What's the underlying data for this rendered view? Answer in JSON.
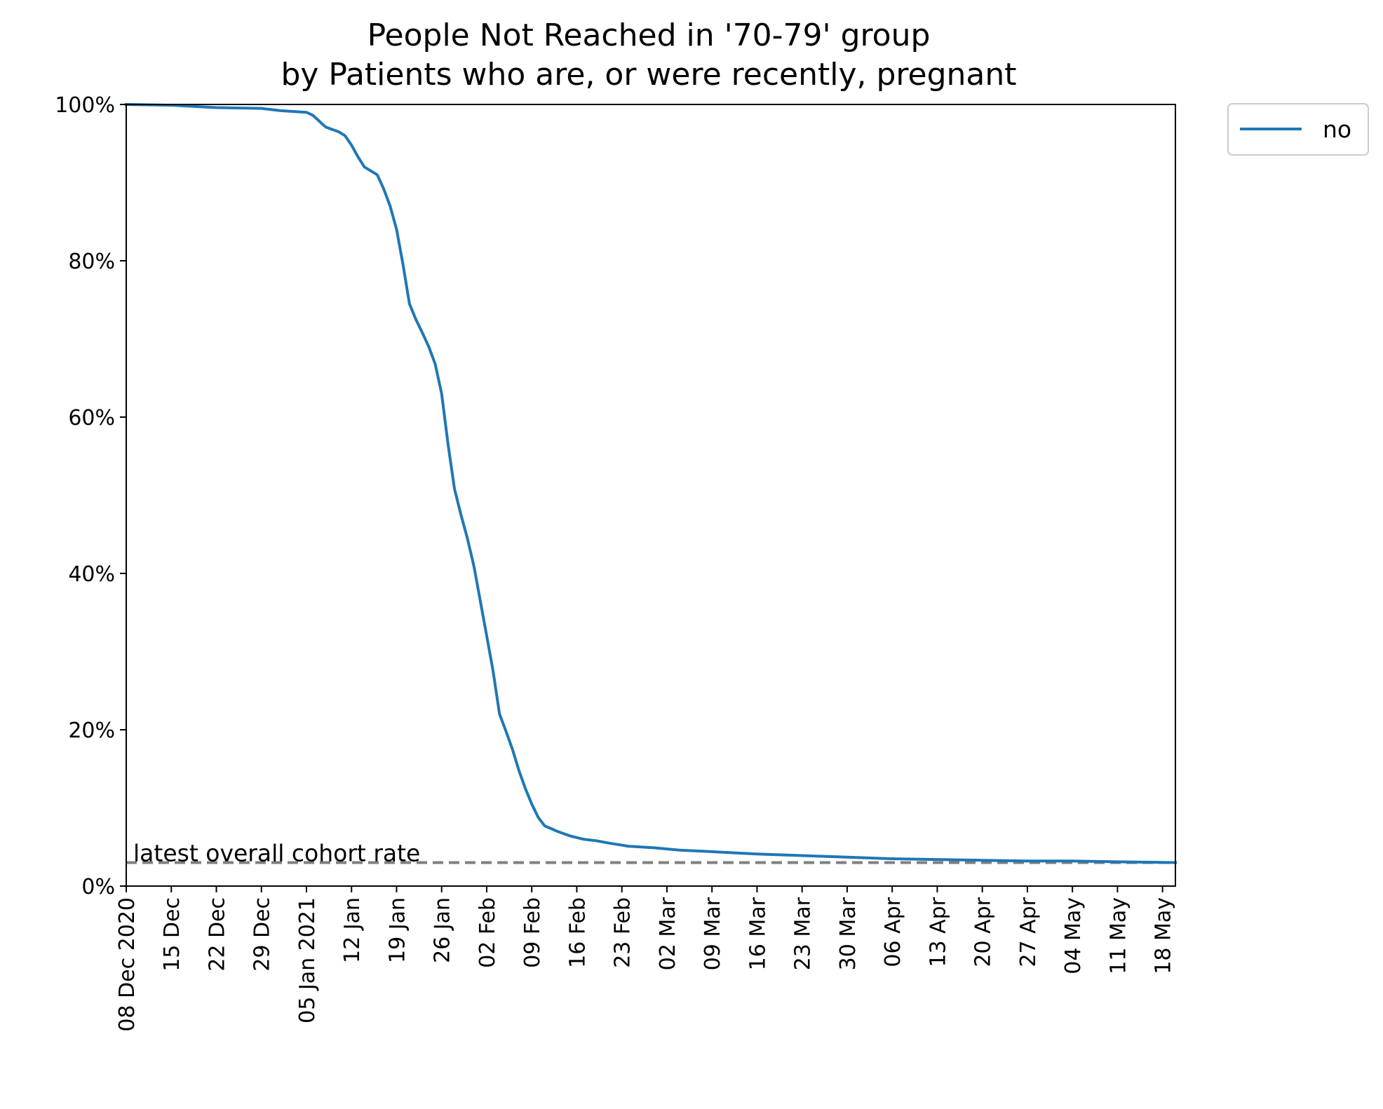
{
  "chart_data": {
    "type": "line",
    "title": "People Not Reached in '70-79' group",
    "subtitle": "by Patients who are, or were recently, pregnant",
    "xlabel": "",
    "ylabel": "",
    "x_tick_labels": [
      "08 Dec 2020",
      "15 Dec",
      "22 Dec",
      "29 Dec",
      "05 Jan 2021",
      "12 Jan",
      "19 Jan",
      "26 Jan",
      "02 Feb",
      "09 Feb",
      "16 Feb",
      "23 Feb",
      "02 Mar",
      "09 Mar",
      "16 Mar",
      "23 Mar",
      "30 Mar",
      "06 Apr",
      "13 Apr",
      "20 Apr",
      "27 Apr",
      "04 May",
      "11 May",
      "18 May"
    ],
    "y_tick_labels": [
      "0%",
      "20%",
      "40%",
      "60%",
      "80%",
      "100%"
    ],
    "xlim": [
      "2020-12-08",
      "2021-05-20"
    ],
    "ylim": [
      0,
      100
    ],
    "grid": false,
    "legend_position": "outside-top-right",
    "series": [
      {
        "name": "no",
        "color": "#1f77b4",
        "points": [
          {
            "x": "2020-12-08",
            "y": 100.0
          },
          {
            "x": "2020-12-15",
            "y": 99.9
          },
          {
            "x": "2020-12-22",
            "y": 99.6
          },
          {
            "x": "2020-12-29",
            "y": 99.5
          },
          {
            "x": "2021-01-01",
            "y": 99.2
          },
          {
            "x": "2021-01-05",
            "y": 99.0
          },
          {
            "x": "2021-01-06",
            "y": 98.6
          },
          {
            "x": "2021-01-08",
            "y": 97.1
          },
          {
            "x": "2021-01-10",
            "y": 96.5
          },
          {
            "x": "2021-01-11",
            "y": 96.0
          },
          {
            "x": "2021-01-12",
            "y": 94.8
          },
          {
            "x": "2021-01-13",
            "y": 93.3
          },
          {
            "x": "2021-01-14",
            "y": 92.0
          },
          {
            "x": "2021-01-15",
            "y": 91.5
          },
          {
            "x": "2021-01-16",
            "y": 91.0
          },
          {
            "x": "2021-01-17",
            "y": 89.2
          },
          {
            "x": "2021-01-18",
            "y": 87.0
          },
          {
            "x": "2021-01-19",
            "y": 84.0
          },
          {
            "x": "2021-01-20",
            "y": 79.5
          },
          {
            "x": "2021-01-21",
            "y": 74.5
          },
          {
            "x": "2021-01-22",
            "y": 72.5
          },
          {
            "x": "2021-01-23",
            "y": 70.8
          },
          {
            "x": "2021-01-24",
            "y": 69.0
          },
          {
            "x": "2021-01-25",
            "y": 66.8
          },
          {
            "x": "2021-01-26",
            "y": 63.0
          },
          {
            "x": "2021-01-27",
            "y": 56.5
          },
          {
            "x": "2021-01-28",
            "y": 50.8
          },
          {
            "x": "2021-01-29",
            "y": 47.5
          },
          {
            "x": "2021-01-30",
            "y": 44.5
          },
          {
            "x": "2021-01-31",
            "y": 41.0
          },
          {
            "x": "2021-02-01",
            "y": 36.5
          },
          {
            "x": "2021-02-02",
            "y": 32.0
          },
          {
            "x": "2021-02-03",
            "y": 27.5
          },
          {
            "x": "2021-02-04",
            "y": 22.0
          },
          {
            "x": "2021-02-05",
            "y": 19.8
          },
          {
            "x": "2021-02-06",
            "y": 17.5
          },
          {
            "x": "2021-02-07",
            "y": 14.8
          },
          {
            "x": "2021-02-08",
            "y": 12.5
          },
          {
            "x": "2021-02-09",
            "y": 10.5
          },
          {
            "x": "2021-02-10",
            "y": 8.8
          },
          {
            "x": "2021-02-11",
            "y": 7.7
          },
          {
            "x": "2021-02-13",
            "y": 7.0
          },
          {
            "x": "2021-02-15",
            "y": 6.4
          },
          {
            "x": "2021-02-17",
            "y": 6.0
          },
          {
            "x": "2021-02-19",
            "y": 5.8
          },
          {
            "x": "2021-02-21",
            "y": 5.5
          },
          {
            "x": "2021-02-24",
            "y": 5.1
          },
          {
            "x": "2021-02-28",
            "y": 4.9
          },
          {
            "x": "2021-03-04",
            "y": 4.6
          },
          {
            "x": "2021-03-09",
            "y": 4.4
          },
          {
            "x": "2021-03-16",
            "y": 4.1
          },
          {
            "x": "2021-03-23",
            "y": 3.9
          },
          {
            "x": "2021-03-30",
            "y": 3.7
          },
          {
            "x": "2021-04-06",
            "y": 3.5
          },
          {
            "x": "2021-04-13",
            "y": 3.4
          },
          {
            "x": "2021-04-20",
            "y": 3.3
          },
          {
            "x": "2021-04-27",
            "y": 3.2
          },
          {
            "x": "2021-05-04",
            "y": 3.2
          },
          {
            "x": "2021-05-11",
            "y": 3.1
          },
          {
            "x": "2021-05-20",
            "y": 3.0
          }
        ]
      }
    ],
    "reference_line": {
      "label": "latest overall cohort rate",
      "y": 3.0,
      "color": "#808080",
      "style": "dashed"
    }
  }
}
